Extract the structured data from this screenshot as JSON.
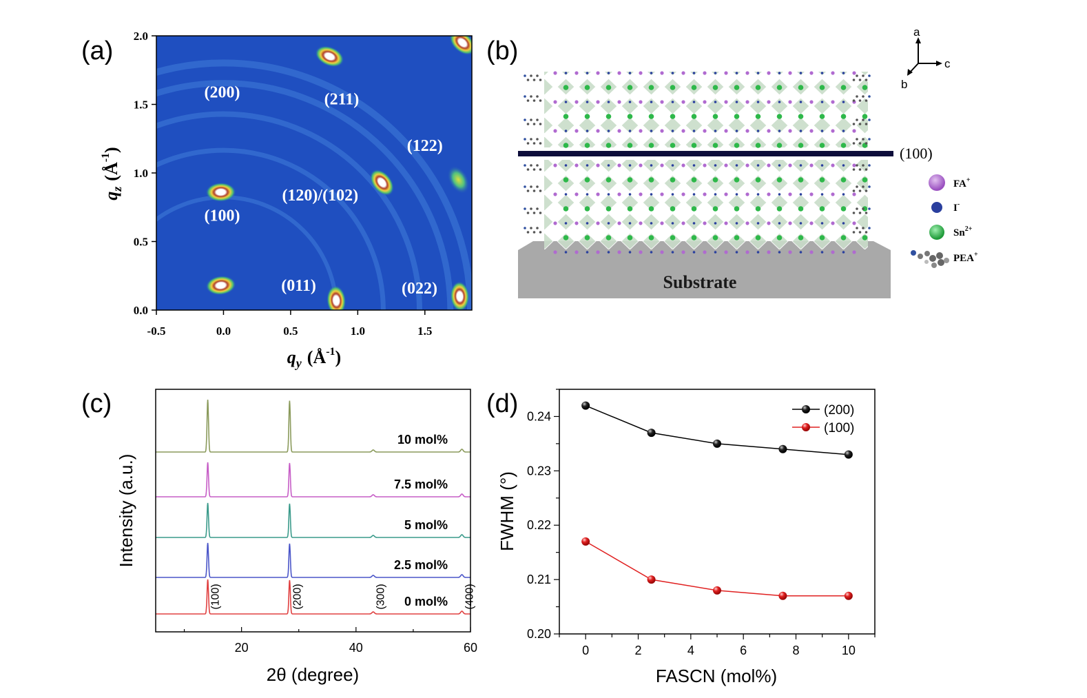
{
  "colors": {
    "axis": "#000000",
    "giwaxs_bg": "#1f4fc0",
    "series_200": "#000000",
    "series_100": "#e02020",
    "fa": "#b06ad0",
    "iodide": "#2a3f9e",
    "sn": "#2eb84a",
    "substrate": "#a9a9a9",
    "trace_10": "#8a9a5b",
    "trace_7_5": "#c65dc6",
    "trace_5": "#3a9a8a",
    "trace_2_5": "#4a55c8",
    "trace_0": "#e04040"
  },
  "panel_a": {
    "label": "(a)",
    "xlabel": "q",
    "xlabel_sub": "y",
    "xlabel_unit": "(Å",
    "ylabel": "q",
    "ylabel_sub": "z",
    "ylabel_unit": "(Å",
    "unit_exp": "-1",
    "unit_close": ")",
    "xlim": [
      -0.5,
      1.85
    ],
    "ylim": [
      0.0,
      2.0
    ],
    "xticks": [
      "-0.5",
      "0.0",
      "0.5",
      "1.0",
      "1.5"
    ],
    "xtick_values": [
      -0.5,
      0.0,
      0.5,
      1.0,
      1.5
    ],
    "yticks": [
      "0.0",
      "0.5",
      "1.0",
      "1.5",
      "2.0"
    ],
    "ytick_values": [
      0.0,
      0.5,
      1.0,
      1.5,
      2.0
    ],
    "annotations": [
      {
        "text": "(200)",
        "q_y": -0.01,
        "q_z": 1.55
      },
      {
        "text": "(211)",
        "q_y": 0.88,
        "q_z": 1.5
      },
      {
        "text": "(122)",
        "q_y": 1.5,
        "q_z": 1.16
      },
      {
        "text": "(120)/(102)",
        "q_y": 0.72,
        "q_z": 0.8
      },
      {
        "text": "(100)",
        "q_y": -0.01,
        "q_z": 0.65
      },
      {
        "text": "(011)",
        "q_y": 0.56,
        "q_z": 0.14
      },
      {
        "text": "(022)",
        "q_y": 1.46,
        "q_z": 0.12
      }
    ],
    "rings": [
      0.84,
      1.19,
      1.46,
      1.69,
      1.84
    ],
    "spots": [
      {
        "q_y": -0.02,
        "q_z": 0.86,
        "level": "hot"
      },
      {
        "q_y": -0.02,
        "q_z": 0.18,
        "level": "hot"
      },
      {
        "q_y": 0.84,
        "q_z": 0.07,
        "level": "hot"
      },
      {
        "q_y": 1.18,
        "q_z": 0.93,
        "level": "hot"
      },
      {
        "q_y": 0.79,
        "q_z": 1.85,
        "level": "hot"
      },
      {
        "q_y": 1.76,
        "q_z": 0.1,
        "level": "hot"
      },
      {
        "q_y": 1.78,
        "q_z": 1.95,
        "level": "hot"
      },
      {
        "q_y": 1.75,
        "q_z": 0.95,
        "level": "warm"
      }
    ]
  },
  "panel_b": {
    "label": "(b)",
    "plane_label": "(100)",
    "substrate_label": "Substrate",
    "axes": {
      "a": "a",
      "b": "b",
      "c": "c"
    },
    "legend": [
      {
        "key": "fa",
        "text": "FA",
        "sup": "+"
      },
      {
        "key": "iodide",
        "text": "I",
        "sup": "-"
      },
      {
        "key": "sn",
        "text": "Sn",
        "sup": "2+"
      },
      {
        "key": "pea",
        "text": "PEA",
        "sup": "+"
      }
    ]
  },
  "panel_c": {
    "label": "(c)",
    "xlabel": "2θ (degree)",
    "ylabel": "Intensity (a.u.)",
    "xlim": [
      5,
      60
    ],
    "xticks": [
      "20",
      "40",
      "60"
    ],
    "xtick_values": [
      20,
      40,
      60
    ],
    "series": [
      {
        "name": "0 mol%",
        "color_key": "trace_0"
      },
      {
        "name": "2.5 mol%",
        "color_key": "trace_2_5"
      },
      {
        "name": "5 mol%",
        "color_key": "trace_5"
      },
      {
        "name": "7.5 mol%",
        "color_key": "trace_7_5"
      },
      {
        "name": "10 mol%",
        "color_key": "trace_10"
      }
    ],
    "peaks": [
      {
        "label": "(100)",
        "two_theta": 14.1
      },
      {
        "label": "(200)",
        "two_theta": 28.4
      },
      {
        "label": "(300)",
        "two_theta": 43.0
      },
      {
        "label": "(400)",
        "two_theta": 58.5
      }
    ]
  },
  "chart_data": {
    "type": "line",
    "xlabel": "FASCN (mol%)",
    "ylabel": "FWHM (°)",
    "label": "(d)",
    "xlim": [
      -1,
      11
    ],
    "ylim": [
      0.2,
      0.245
    ],
    "xticks": [
      "0",
      "2",
      "4",
      "6",
      "8",
      "10"
    ],
    "xtick_values": [
      0,
      2,
      4,
      6,
      8,
      10
    ],
    "yticks": [
      "0.20",
      "0.21",
      "0.22",
      "0.23",
      "0.24"
    ],
    "ytick_values": [
      0.2,
      0.21,
      0.22,
      0.23,
      0.24
    ],
    "legend_position": "top-right",
    "x": [
      0,
      2.5,
      5,
      7.5,
      10
    ],
    "series": [
      {
        "name": "(200)",
        "color_key": "series_200",
        "values": [
          0.242,
          0.237,
          0.235,
          0.234,
          0.233
        ]
      },
      {
        "name": "(100)",
        "color_key": "series_100",
        "values": [
          0.217,
          0.21,
          0.208,
          0.207,
          0.207
        ]
      }
    ]
  }
}
